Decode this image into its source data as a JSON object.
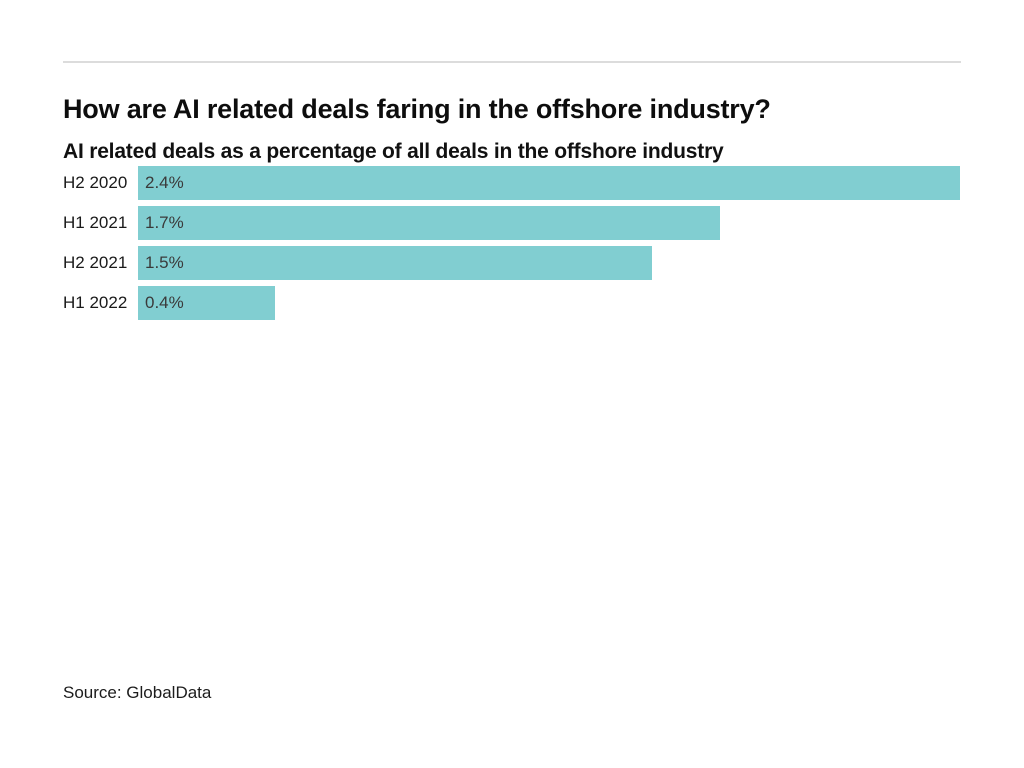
{
  "chart_data": {
    "type": "bar",
    "orientation": "horizontal",
    "title": "How are AI related deals faring in the offshore industry?",
    "subtitle": "AI related deals as a percentage of all deals in the offshore industry",
    "categories": [
      "H2 2020",
      "H1 2021",
      "H2 2021",
      "H1 2022"
    ],
    "values": [
      2.4,
      1.7,
      1.5,
      0.4
    ],
    "value_labels": [
      "2.4%",
      "1.7%",
      "1.5%",
      "0.4%"
    ],
    "xlim": [
      0,
      2.4
    ],
    "grid": false,
    "legend": false,
    "source": "Source: GlobalData"
  },
  "colors": {
    "bar": "#81ced1",
    "divider": "#dcdcdc",
    "title_text": "#0d0d0d",
    "category_text": "#1a1a1a",
    "value_text": "#3a3a3a",
    "background": "#ffffff"
  }
}
